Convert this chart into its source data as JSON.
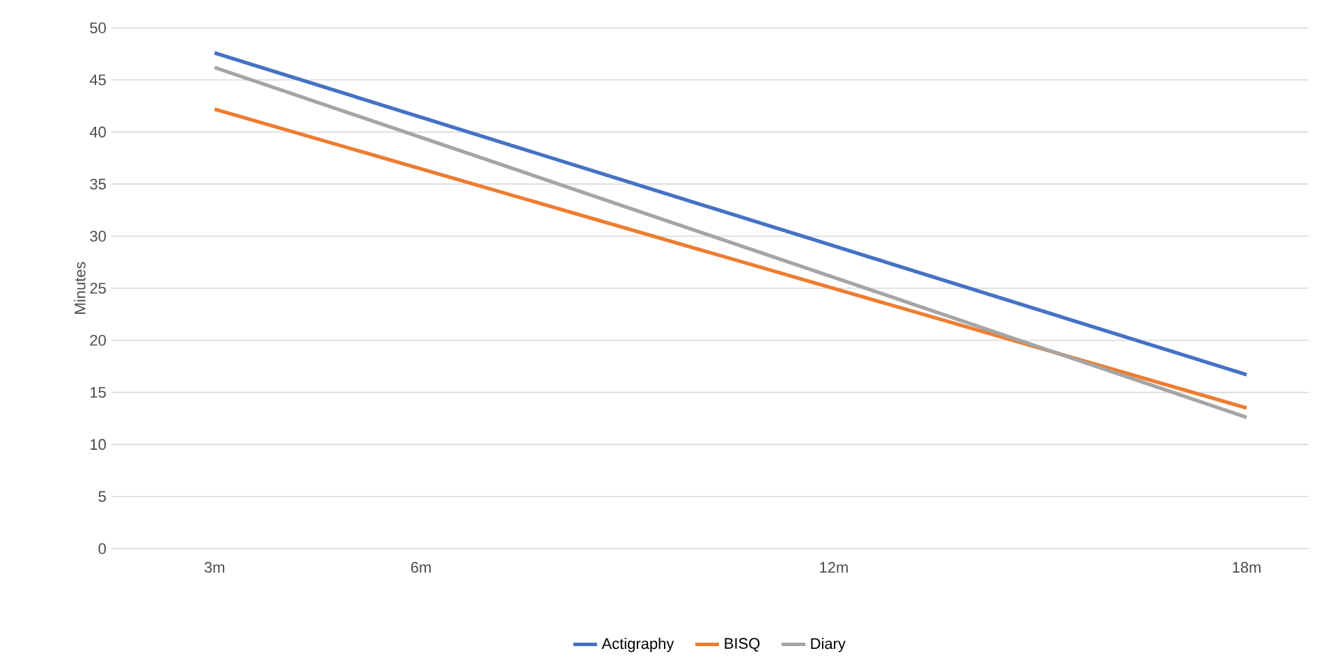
{
  "chart_data": {
    "type": "line",
    "ylabel": "Minutes",
    "x": [
      3,
      18
    ],
    "xlim": [
      1.5,
      18.9
    ],
    "xticks": [
      {
        "value": 3,
        "label": "3m"
      },
      {
        "value": 6,
        "label": "6m"
      },
      {
        "value": 12,
        "label": "12m"
      },
      {
        "value": 18,
        "label": "18m"
      }
    ],
    "ylim": [
      0,
      50
    ],
    "yticks": [
      0,
      5,
      10,
      15,
      20,
      25,
      30,
      35,
      40,
      45,
      50
    ],
    "grid": "y",
    "legend": "bottom",
    "marker": "none",
    "line_style": "solid",
    "series": [
      {
        "name": "Actigraphy",
        "color": "#4472c4",
        "values": [
          47.6,
          16.7
        ]
      },
      {
        "name": "BISQ",
        "color": "#ed7d31",
        "values": [
          42.2,
          13.5
        ]
      },
      {
        "name": "Diary",
        "color": "#a5a5a5",
        "values": [
          46.2,
          12.6
        ]
      }
    ]
  }
}
